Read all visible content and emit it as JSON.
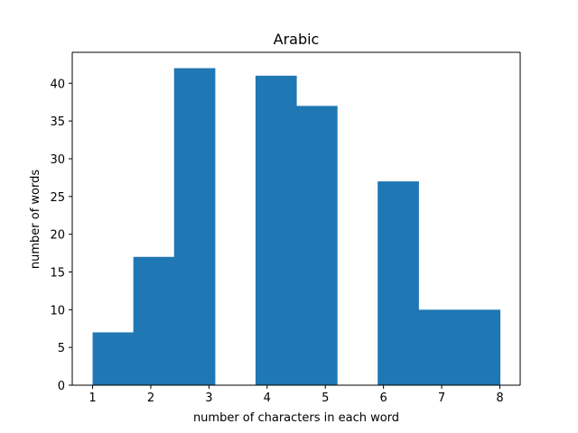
{
  "chart_data": {
    "type": "bar",
    "title": "Arabic",
    "xlabel": "number of characters in each word",
    "ylabel": "number of words",
    "bins": [
      {
        "x0": 1.0,
        "x1": 1.7,
        "value": 7
      },
      {
        "x0": 1.7,
        "x1": 2.4,
        "value": 17
      },
      {
        "x0": 2.4,
        "x1": 3.1,
        "value": 42
      },
      {
        "x0": 3.1,
        "x1": 3.8,
        "value": 0
      },
      {
        "x0": 3.8,
        "x1": 4.5,
        "value": 41
      },
      {
        "x0": 4.5,
        "x1": 5.2,
        "value": 37
      },
      {
        "x0": 5.2,
        "x1": 5.9,
        "value": 0
      },
      {
        "x0": 5.9,
        "x1": 6.6,
        "value": 27
      },
      {
        "x0": 6.6,
        "x1": 7.3,
        "value": 10
      },
      {
        "x0": 7.3,
        "x1": 8.0,
        "value": 10
      }
    ],
    "xlim": [
      0.65,
      8.35
    ],
    "ylim": [
      0,
      44.1
    ],
    "xticks": [
      1,
      2,
      3,
      4,
      5,
      6,
      7,
      8
    ],
    "yticks": [
      0,
      5,
      10,
      15,
      20,
      25,
      30,
      35,
      40
    ],
    "bar_color": "#1f77b4",
    "grid": false,
    "legend": "none"
  }
}
